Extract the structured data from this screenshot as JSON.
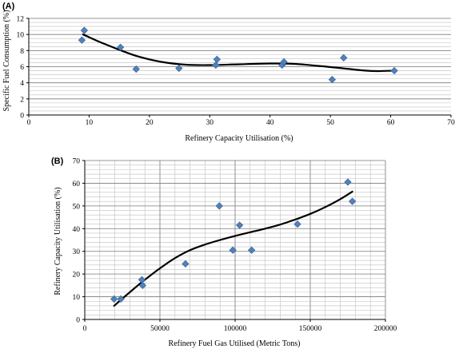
{
  "colors": {
    "marker": "#4f81bd",
    "marker_edge": "#385d8a",
    "trendline": "#000000",
    "gridline_major": "#7f7f7f",
    "gridline_minor": "#bfbfbf",
    "axis": "#000000"
  },
  "chart_data": [
    {
      "type": "scatter",
      "panel_label": "(A)",
      "title": "",
      "xlabel": "Refinery Capacity Utilisation (%)",
      "ylabel": "Specific Fuel Consumption (%)",
      "xlim": [
        0,
        70
      ],
      "ylim": [
        0,
        12
      ],
      "xticks": [
        0,
        10,
        20,
        30,
        40,
        50,
        60,
        70
      ],
      "yticks": [
        0,
        2,
        4,
        6,
        8,
        10,
        12
      ],
      "xtick_labels": [
        "0",
        "10",
        "20",
        "30",
        "40",
        "50",
        "60",
        "70"
      ],
      "ytick_labels": [
        "0",
        "2",
        "4",
        "6",
        "8",
        "10",
        "12"
      ],
      "grid": {
        "horizontal_major": true,
        "horizontal_minor": true,
        "vertical": false
      },
      "legend": "none",
      "series": [
        {
          "marker": "diamond",
          "points": [
            {
              "x": 8.8,
              "y": 9.3
            },
            {
              "x": 9.2,
              "y": 10.5
            },
            {
              "x": 15.2,
              "y": 8.4
            },
            {
              "x": 17.8,
              "y": 5.7
            },
            {
              "x": 24.9,
              "y": 5.8
            },
            {
              "x": 31.0,
              "y": 6.2
            },
            {
              "x": 31.2,
              "y": 6.9
            },
            {
              "x": 42.0,
              "y": 6.2
            },
            {
              "x": 42.3,
              "y": 6.6
            },
            {
              "x": 50.3,
              "y": 4.4
            },
            {
              "x": 52.2,
              "y": 7.1
            },
            {
              "x": 60.6,
              "y": 5.5
            }
          ]
        }
      ],
      "trendline": {
        "type": "polynomial",
        "points": [
          {
            "x": 9,
            "y": 10.0
          },
          {
            "x": 12,
            "y": 9.0
          },
          {
            "x": 15,
            "y": 8.1
          },
          {
            "x": 18,
            "y": 7.3
          },
          {
            "x": 22,
            "y": 6.6
          },
          {
            "x": 26,
            "y": 6.25
          },
          {
            "x": 30,
            "y": 6.2
          },
          {
            "x": 35,
            "y": 6.3
          },
          {
            "x": 40,
            "y": 6.4
          },
          {
            "x": 44,
            "y": 6.35
          },
          {
            "x": 48,
            "y": 6.1
          },
          {
            "x": 52,
            "y": 5.8
          },
          {
            "x": 56,
            "y": 5.5
          },
          {
            "x": 58,
            "y": 5.45
          },
          {
            "x": 60.6,
            "y": 5.5
          }
        ]
      }
    },
    {
      "type": "scatter",
      "panel_label": "(B)",
      "title": "",
      "xlabel": "Refinery Fuel Gas Utilised (Metric Tons)",
      "ylabel": "Refinery Capacity Utilisation (%)",
      "xlim": [
        0,
        200000
      ],
      "ylim": [
        0,
        70
      ],
      "xticks": [
        0,
        50000,
        100000,
        150000,
        200000
      ],
      "yticks": [
        0,
        10,
        20,
        30,
        40,
        50,
        60,
        70
      ],
      "xtick_labels": [
        "0",
        "50000",
        "100000",
        "150000",
        "200000"
      ],
      "ytick_labels": [
        "0",
        "10",
        "20",
        "30",
        "40",
        "50",
        "60",
        "70"
      ],
      "grid": {
        "horizontal_major": true,
        "horizontal_minor": true,
        "vertical_major": true,
        "vertical_minor": true
      },
      "legend": "none",
      "series": [
        {
          "marker": "diamond",
          "points": [
            {
              "x": 19500,
              "y": 9.0
            },
            {
              "x": 24000,
              "y": 9.0
            },
            {
              "x": 38000,
              "y": 17.5
            },
            {
              "x": 38500,
              "y": 15.0
            },
            {
              "x": 67000,
              "y": 24.5
            },
            {
              "x": 89500,
              "y": 50.0
            },
            {
              "x": 98500,
              "y": 30.5
            },
            {
              "x": 103000,
              "y": 41.5
            },
            {
              "x": 111000,
              "y": 30.5
            },
            {
              "x": 141500,
              "y": 42.0
            },
            {
              "x": 175000,
              "y": 60.5
            },
            {
              "x": 178000,
              "y": 52.0
            }
          ]
        }
      ],
      "trendline": {
        "type": "polynomial",
        "points": [
          {
            "x": 19500,
            "y": 6.0
          },
          {
            "x": 30000,
            "y": 12.0
          },
          {
            "x": 40000,
            "y": 17.5
          },
          {
            "x": 50000,
            "y": 22.5
          },
          {
            "x": 60000,
            "y": 27.0
          },
          {
            "x": 70000,
            "y": 30.5
          },
          {
            "x": 80000,
            "y": 33.0
          },
          {
            "x": 90000,
            "y": 35.0
          },
          {
            "x": 100000,
            "y": 36.8
          },
          {
            "x": 110000,
            "y": 38.4
          },
          {
            "x": 120000,
            "y": 40.0
          },
          {
            "x": 130000,
            "y": 41.8
          },
          {
            "x": 140000,
            "y": 44.0
          },
          {
            "x": 150000,
            "y": 46.5
          },
          {
            "x": 160000,
            "y": 49.5
          },
          {
            "x": 170000,
            "y": 53.0
          },
          {
            "x": 178000,
            "y": 56.3
          }
        ]
      }
    }
  ]
}
